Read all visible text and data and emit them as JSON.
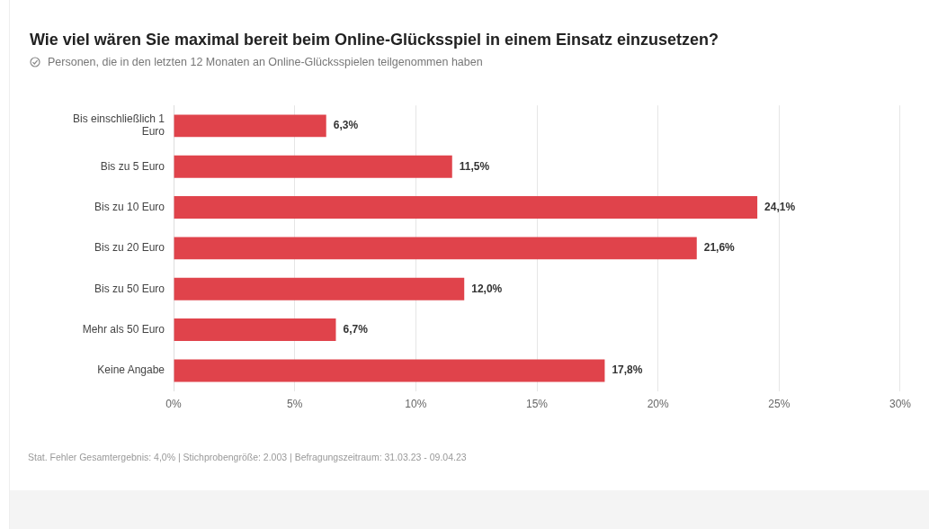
{
  "chart_data": {
    "type": "bar",
    "orientation": "horizontal",
    "title": "Wie viel wären Sie maximal bereit beim Online-Glücksspiel in einem Einsatz einzusetzen?",
    "subtitle": "Personen, die in den letzten 12 Monaten an Online-Glücksspielen teilgenommen haben",
    "categories": [
      "Bis einschließlich 1 Euro",
      "Bis zu 5 Euro",
      "Bis zu 10 Euro",
      "Bis zu 20 Euro",
      "Bis zu 50 Euro",
      "Mehr als 50 Euro",
      "Keine Angabe"
    ],
    "values": [
      6.3,
      11.5,
      24.1,
      21.6,
      12.0,
      6.7,
      17.8
    ],
    "value_labels": [
      "6,3%",
      "11,5%",
      "24,1%",
      "21,6%",
      "12,0%",
      "6,7%",
      "17,8%"
    ],
    "color": "#e0434b",
    "xlim": [
      0,
      30
    ],
    "xticks": [
      {
        "value": 0,
        "label": "0%"
      },
      {
        "value": 5,
        "label": "5%"
      },
      {
        "value": 10,
        "label": "10%"
      },
      {
        "value": 15,
        "label": "15%"
      },
      {
        "value": 20,
        "label": "20%"
      },
      {
        "value": 25,
        "label": "25%"
      },
      {
        "value": 30,
        "label": "30%"
      }
    ],
    "grid": "x",
    "annotations": [
      "Stat. Fehler Gesamtergebnis: 4,0% | Stichprobengröße: 2.003 | Befragungszeitraum: 31.03.23 - 09.04.23"
    ]
  }
}
